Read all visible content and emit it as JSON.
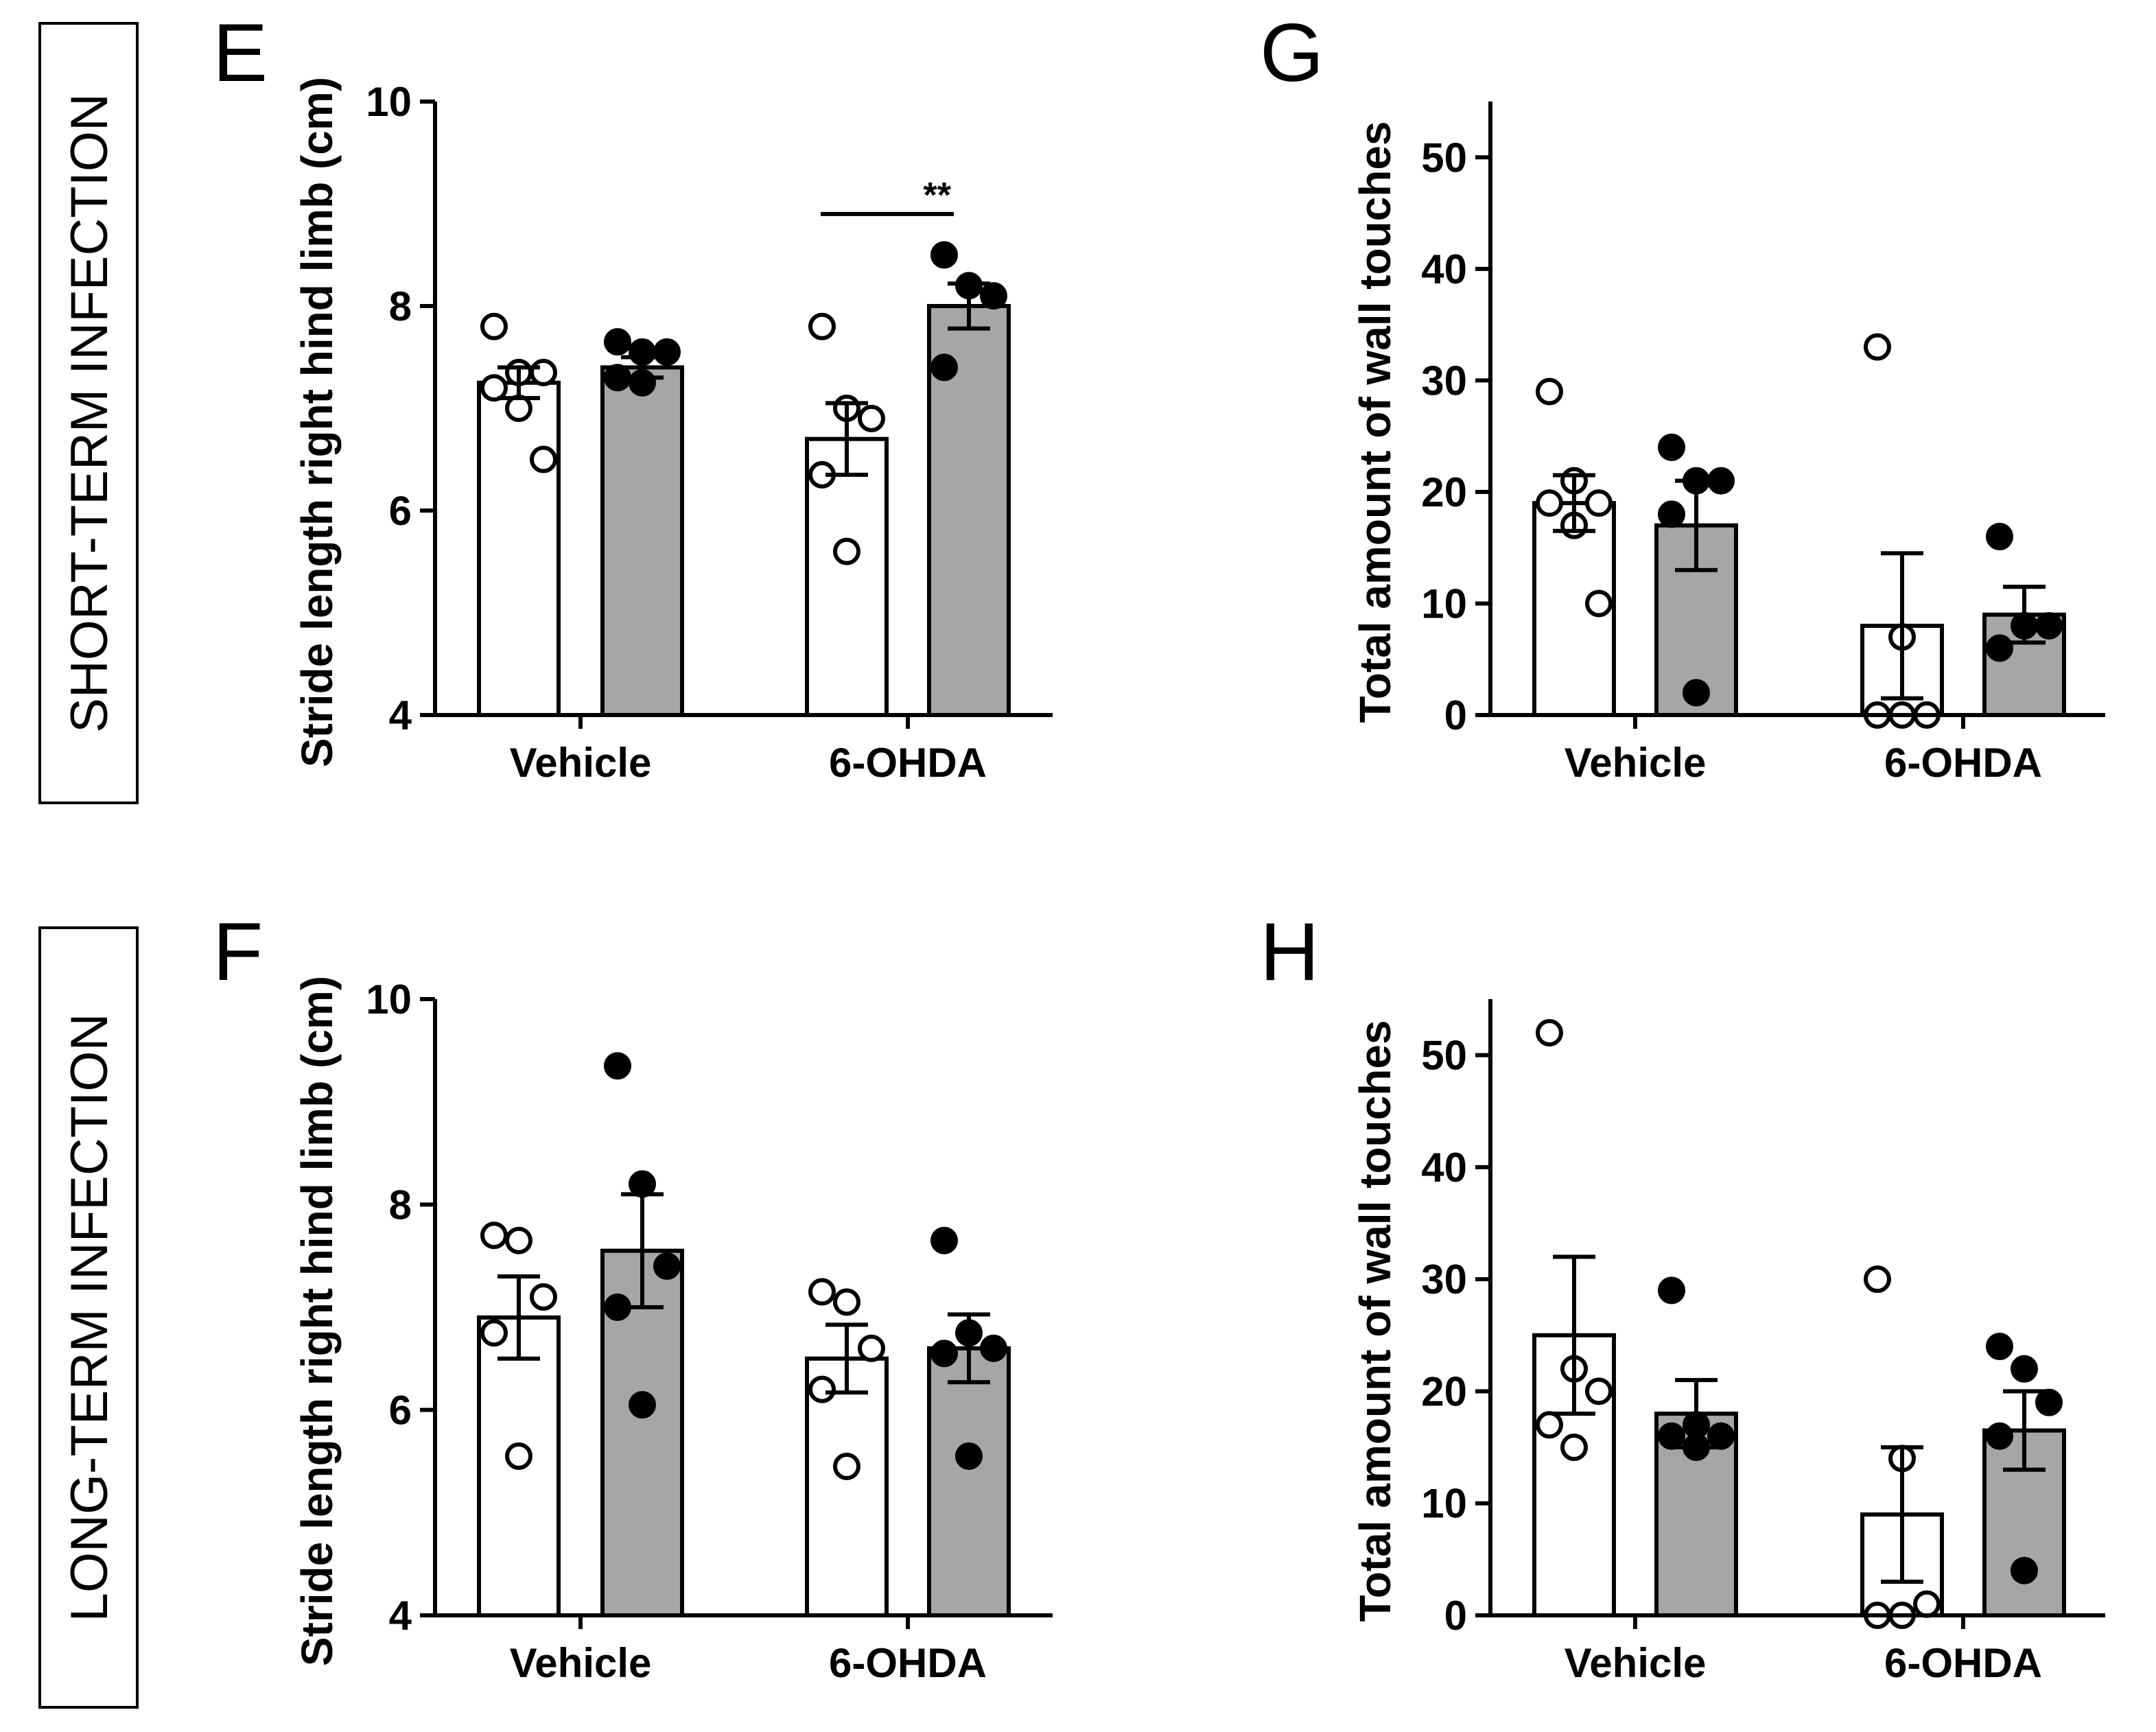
{
  "colors": {
    "vehicle_bar": "#ffffff",
    "treated_bar": "#a6a6a6",
    "ink": "#000000"
  },
  "row_labels": {
    "top": "SHORT-TERM INFECTION",
    "bottom": "LONG-TERM INFECTION"
  },
  "chart_data": [
    {
      "panel": "E",
      "type": "bar",
      "categories": [
        "Vehicle",
        "6-OHDA"
      ],
      "ylabel": "Stride length right hind limb (cm)",
      "ylim": [
        4,
        10
      ],
      "yticks": [
        4,
        6,
        8,
        10
      ],
      "series": [
        {
          "name": "open",
          "fill": "open",
          "means": [
            7.25,
            6.7
          ],
          "sem": [
            0.15,
            0.35
          ],
          "points": [
            [
              7.8,
              7.35,
              7.35,
              7.2,
              7.0,
              6.5
            ],
            [
              7.8,
              7.0,
              6.9,
              6.35,
              5.6
            ]
          ]
        },
        {
          "name": "filled",
          "fill": "filled",
          "means": [
            7.4,
            8.0
          ],
          "sem": [
            0.1,
            0.22
          ],
          "points": [
            [
              7.65,
              7.55,
              7.55,
              7.3,
              7.25
            ],
            [
              8.5,
              8.2,
              8.1,
              7.4
            ]
          ]
        }
      ],
      "significance": {
        "label": "**",
        "y": 8.9,
        "group": 1
      }
    },
    {
      "panel": "G",
      "type": "bar",
      "categories": [
        "Vehicle",
        "6-OHDA"
      ],
      "ylabel": "Total amount of wall touches",
      "ylim": [
        0,
        55
      ],
      "yticks": [
        0,
        10,
        20,
        30,
        40,
        50
      ],
      "series": [
        {
          "name": "open",
          "fill": "open",
          "means": [
            19,
            8
          ],
          "sem": [
            2.5,
            6.5
          ],
          "points": [
            [
              29,
              21,
              19,
              19,
              17,
              10
            ],
            [
              33,
              7,
              0,
              0,
              0
            ]
          ]
        },
        {
          "name": "filled",
          "fill": "filled",
          "means": [
            17,
            9
          ],
          "sem": [
            4,
            2.5
          ],
          "points": [
            [
              24,
              21,
              21,
              18,
              2
            ],
            [
              16,
              8,
              8,
              6
            ]
          ]
        }
      ]
    },
    {
      "panel": "F",
      "type": "bar",
      "categories": [
        "Vehicle",
        "6-OHDA"
      ],
      "ylabel": "Stride length right hind limb (cm)",
      "ylim": [
        4,
        10
      ],
      "yticks": [
        4,
        6,
        8,
        10
      ],
      "series": [
        {
          "name": "open",
          "fill": "open",
          "means": [
            6.9,
            6.5
          ],
          "sem": [
            0.4,
            0.33
          ],
          "points": [
            [
              7.7,
              7.65,
              7.1,
              6.75,
              5.55
            ],
            [
              7.15,
              7.05,
              6.6,
              6.2,
              5.45
            ]
          ]
        },
        {
          "name": "filled",
          "fill": "filled",
          "means": [
            7.55,
            6.6
          ],
          "sem": [
            0.55,
            0.33
          ],
          "points": [
            [
              9.35,
              8.2,
              7.4,
              7.0,
              6.05
            ],
            [
              7.65,
              6.75,
              6.6,
              6.55,
              5.55
            ]
          ]
        }
      ]
    },
    {
      "panel": "H",
      "type": "bar",
      "categories": [
        "Vehicle",
        "6-OHDA"
      ],
      "ylabel": "Total amount of wall touches",
      "ylim": [
        0,
        55
      ],
      "yticks": [
        0,
        10,
        20,
        30,
        40,
        50
      ],
      "series": [
        {
          "name": "open",
          "fill": "open",
          "means": [
            25,
            9
          ],
          "sem": [
            7,
            6
          ],
          "points": [
            [
              52,
              22,
              20,
              17,
              15
            ],
            [
              30,
              14,
              1,
              0,
              0
            ]
          ]
        },
        {
          "name": "filled",
          "fill": "filled",
          "means": [
            18,
            16.5
          ],
          "sem": [
            3,
            3.5
          ],
          "points": [
            [
              29,
              17,
              16,
              16,
              15
            ],
            [
              24,
              22,
              19,
              16,
              4
            ]
          ]
        }
      ]
    }
  ]
}
